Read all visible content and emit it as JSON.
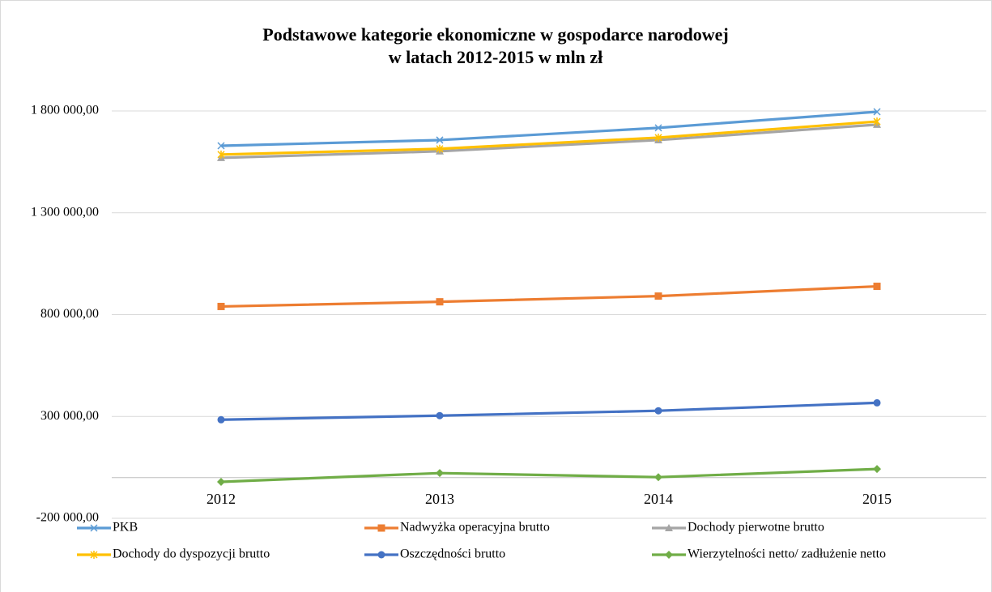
{
  "chart_data": {
    "type": "line",
    "title": [
      "Podstawowe kategorie ekonomiczne w gospodarce narodowej",
      "w latach 2012-2015 w mln zł"
    ],
    "categories": [
      "2012",
      "2013",
      "2014",
      "2015"
    ],
    "series": [
      {
        "name": "PKB",
        "color": "#5b9bd5",
        "marker": "x",
        "values": [
          1629000,
          1657000,
          1717000,
          1796000
        ]
      },
      {
        "name": "Nadwyżka operacyjna brutto",
        "color": "#ed7d31",
        "marker": "square",
        "values": [
          840000,
          863000,
          891000,
          939000
        ]
      },
      {
        "name": "Dochody pierwotne brutto",
        "color": "#a5a5a5",
        "marker": "triangle",
        "values": [
          1570000,
          1602000,
          1657000,
          1733000
        ]
      },
      {
        "name": "Dochody do dyspozycji brutto",
        "color": "#ffc000",
        "marker": "star",
        "values": [
          1586000,
          1614000,
          1669000,
          1748000
        ]
      },
      {
        "name": "Oszczędności brutto",
        "color": "#4472c4",
        "marker": "circle",
        "values": [
          284000,
          304000,
          328000,
          367000
        ]
      },
      {
        "name": "Wierzytelności netto/ zadłużenie netto",
        "color": "#70ad47",
        "marker": "diamond",
        "values": [
          -21000,
          22000,
          2000,
          42000
        ]
      }
    ],
    "ylim": [
      -200000,
      1800000
    ],
    "yticks": [
      {
        "value": -200000,
        "label": "-200 000,00"
      },
      {
        "value": 300000,
        "label": "300 000,00"
      },
      {
        "value": 800000,
        "label": "800 000,00"
      },
      {
        "value": 1300000,
        "label": "1 300 000,00"
      },
      {
        "value": 1800000,
        "label": "1 800 000,00"
      }
    ],
    "grid": true,
    "legend": "bottom"
  }
}
